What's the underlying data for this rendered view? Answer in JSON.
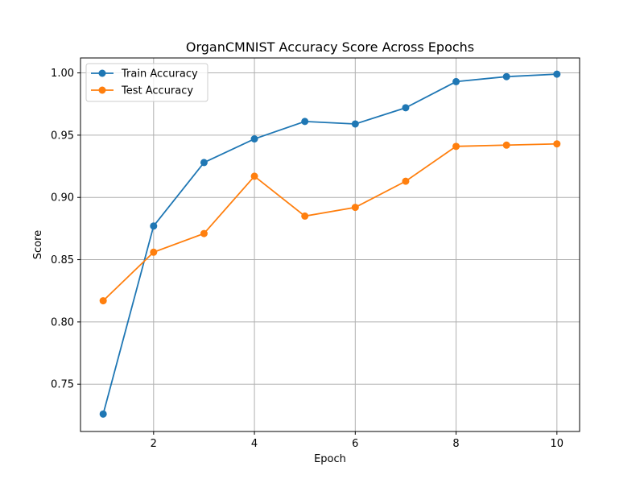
{
  "chart_data": {
    "type": "line",
    "title": "OrganCMNIST Accuracy Score Across Epochs",
    "xlabel": "Epoch",
    "ylabel": "Score",
    "x": [
      1,
      2,
      3,
      4,
      5,
      6,
      7,
      8,
      9,
      10
    ],
    "xlim": [
      0.55,
      10.45
    ],
    "ylim": [
      0.712,
      1.012
    ],
    "xticks": [
      2,
      4,
      6,
      8,
      10
    ],
    "yticks": [
      0.75,
      0.8,
      0.85,
      0.9,
      0.95,
      1.0
    ],
    "xtick_labels": [
      "2",
      "4",
      "6",
      "8",
      "10"
    ],
    "ytick_labels": [
      "0.75",
      "0.80",
      "0.85",
      "0.90",
      "0.95",
      "1.00"
    ],
    "grid": true,
    "legend_position": "top-left",
    "series": [
      {
        "name": "Train Accuracy",
        "color": "#1f77b4",
        "values": [
          0.726,
          0.877,
          0.928,
          0.947,
          0.961,
          0.959,
          0.972,
          0.993,
          0.997,
          0.999
        ]
      },
      {
        "name": "Test Accuracy",
        "color": "#ff7f0e",
        "values": [
          0.817,
          0.856,
          0.871,
          0.917,
          0.885,
          0.892,
          0.913,
          0.941,
          0.942,
          0.943
        ]
      }
    ]
  }
}
